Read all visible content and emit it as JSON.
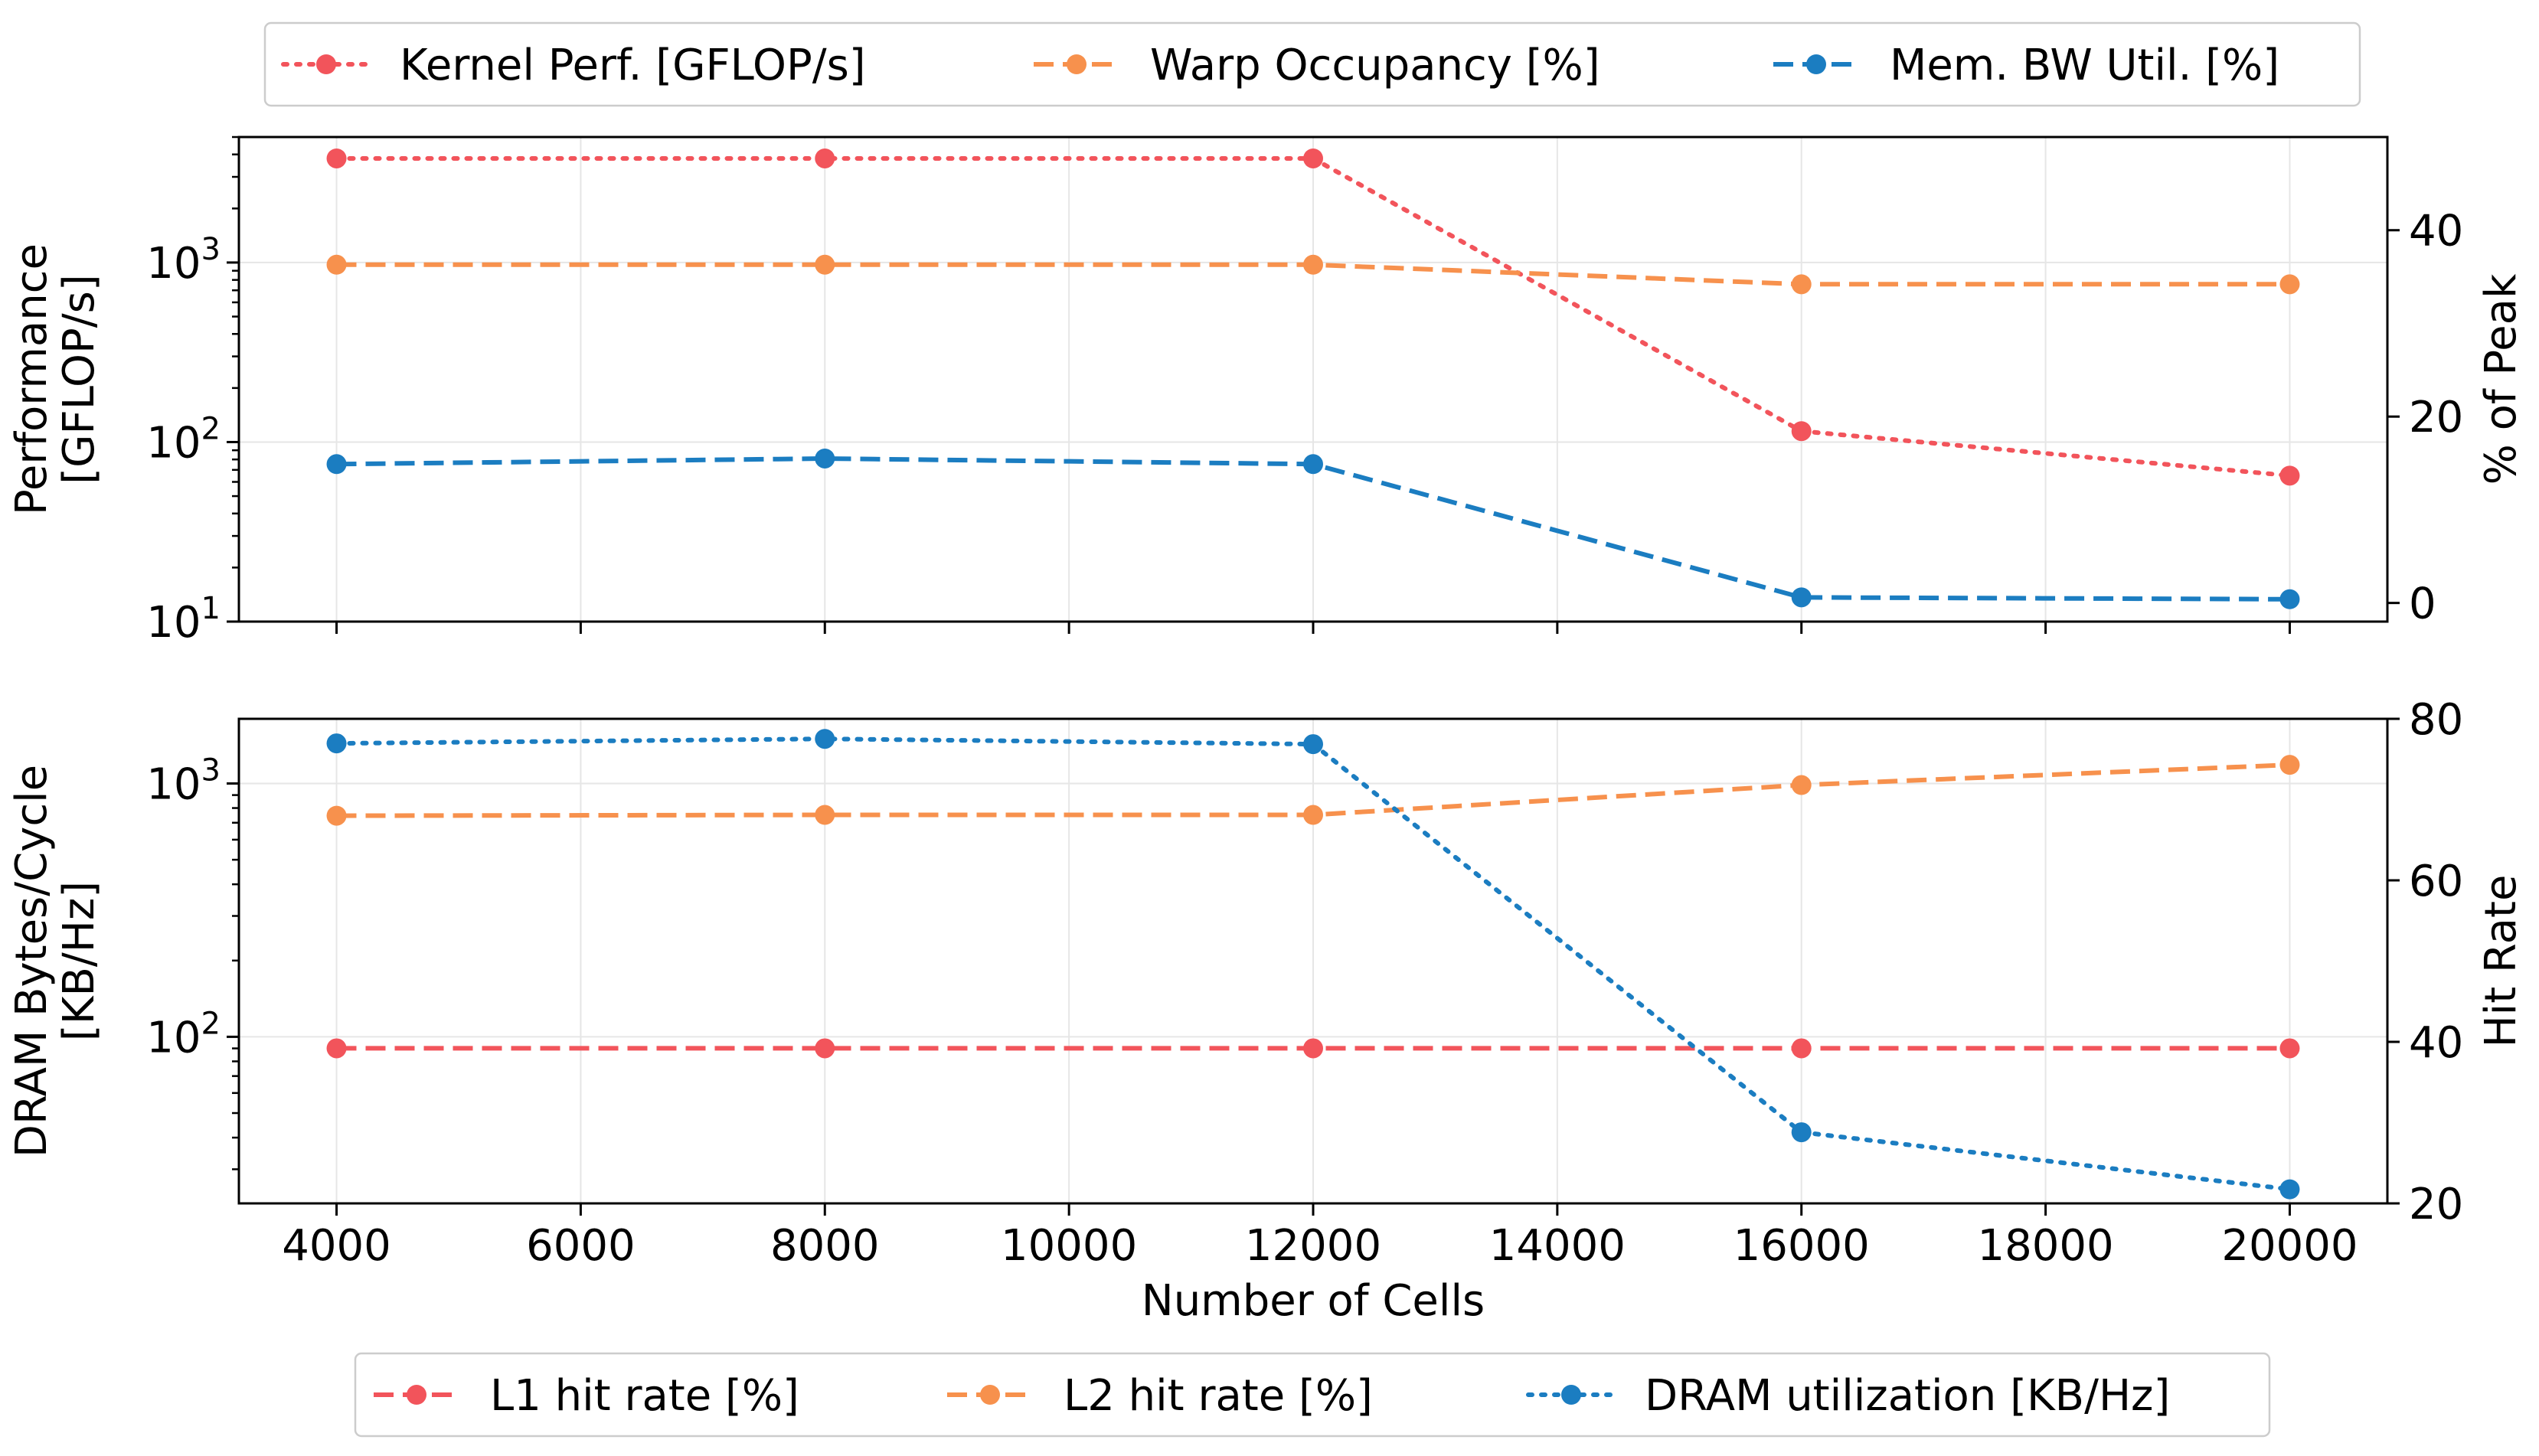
{
  "chart_data": [
    {
      "type": "line",
      "panel": "top",
      "x": [
        4000,
        8000,
        12000,
        16000,
        20000
      ],
      "xlim": [
        3200,
        20800
      ],
      "ylabel_left": [
        "Performance",
        "[GFLOP/s]"
      ],
      "ylabel_right": "% of Peak",
      "yscale_left": "log",
      "ylim_left": [
        10,
        5000
      ],
      "ylim_right": [
        -2,
        50
      ],
      "left_ticks": [
        {
          "base": "10",
          "exp": "1",
          "value": 10
        },
        {
          "base": "10",
          "exp": "2",
          "value": 100
        },
        {
          "base": "10",
          "exp": "3",
          "value": 1000
        }
      ],
      "right_ticks": [
        "0",
        "20",
        "40"
      ],
      "grid": true,
      "series": [
        {
          "name": "Kernel Perf. [GFLOP/s]",
          "axis": "left",
          "color": "#f2545b",
          "style": "dotted",
          "values": [
            3800,
            3800,
            3800,
            115,
            65
          ]
        },
        {
          "name": "Warp Occupancy [%]",
          "axis": "right",
          "color": "#f7914d",
          "style": "dashed",
          "values": [
            36.3,
            36.3,
            36.3,
            34.2,
            34.2
          ]
        },
        {
          "name": "Mem. BW Util. [%]",
          "axis": "right",
          "color": "#1b7dc1",
          "style": "dashed",
          "values": [
            14.9,
            15.5,
            14.9,
            0.6,
            0.4
          ]
        }
      ],
      "legend_position": "top"
    },
    {
      "type": "line",
      "panel": "bottom",
      "x": [
        4000,
        8000,
        12000,
        16000,
        20000
      ],
      "xlim": [
        3200,
        20800
      ],
      "xlabel": "Number of Cells",
      "x_ticks": [
        "4000",
        "6000",
        "8000",
        "10000",
        "12000",
        "14000",
        "16000",
        "18000",
        "20000"
      ],
      "ylabel_left": [
        "DRAM Bytes/Cycle",
        "[KB/Hz]"
      ],
      "ylabel_right": "Hit Rate",
      "yscale_left": "log",
      "ylim_left": [
        22,
        1800
      ],
      "ylim_right": [
        20,
        80
      ],
      "left_ticks": [
        {
          "base": "10",
          "exp": "2",
          "value": 100
        },
        {
          "base": "10",
          "exp": "3",
          "value": 1000
        }
      ],
      "right_ticks": [
        "20",
        "40",
        "60",
        "80"
      ],
      "grid": true,
      "series": [
        {
          "name": "L1 hit rate [%]",
          "axis": "right",
          "color": "#f2545b",
          "style": "dashed",
          "values": [
            39.2,
            39.2,
            39.2,
            39.2,
            39.2
          ]
        },
        {
          "name": "L2 hit rate [%]",
          "axis": "right",
          "color": "#f7914d",
          "style": "dashed",
          "values": [
            68.0,
            68.1,
            68.1,
            71.8,
            74.3
          ]
        },
        {
          "name": "DRAM utilization [KB/Hz]",
          "axis": "left",
          "color": "#1b7dc1",
          "style": "dotted",
          "values": [
            1440,
            1500,
            1430,
            42,
            25
          ]
        }
      ],
      "legend_position": "bottom"
    }
  ]
}
